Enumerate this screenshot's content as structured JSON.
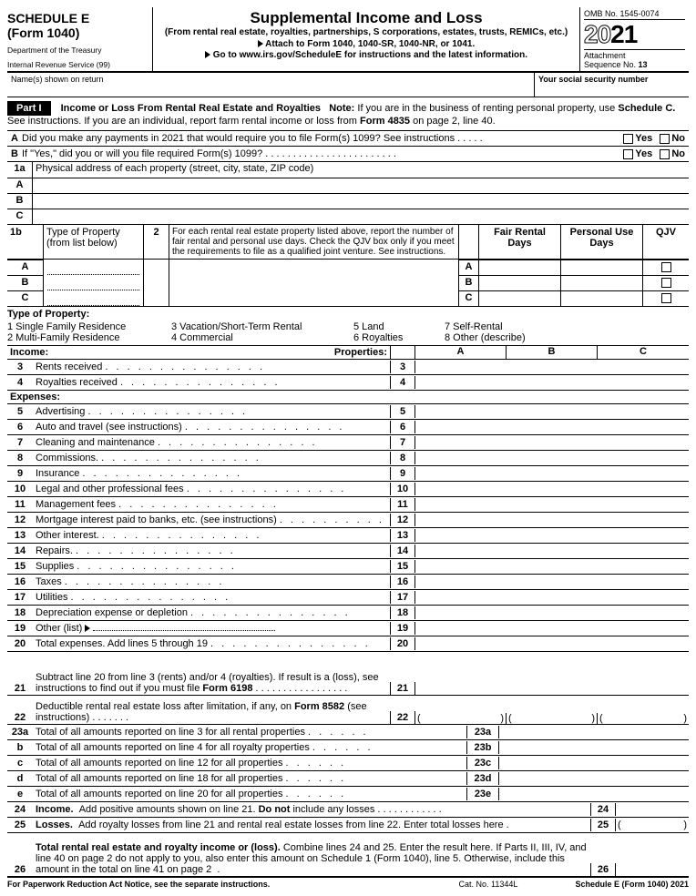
{
  "header": {
    "schedule": "SCHEDULE E",
    "form": "(Form 1040)",
    "dept": "Department of the Treasury",
    "irs": "Internal Revenue Service (99)",
    "title": "Supplemental Income and Loss",
    "subtitle": "(From rental real estate, royalties, partnerships, S corporations, estates, trusts, REMICs, etc.)",
    "attach": "Attach to Form 1040, 1040-SR, 1040-NR, or 1041.",
    "goto": "Go to www.irs.gov/ScheduleE for instructions and the latest information.",
    "omb": "OMB No. 1545-0074",
    "year": "2021",
    "attachment": "Attachment",
    "seq": "Sequence No. 13",
    "name_label": "Name(s) shown on return",
    "ssn_label": "Your social security number"
  },
  "part1": {
    "label": "Part I",
    "title": "Income or Loss From Rental Real Estate and Royalties",
    "note": "Note: If you are in the business of renting personal property, use Schedule C. See instructions. If you are an individual, report farm rental income or loss from Form 4835 on page 2, line 40."
  },
  "qA": {
    "lbl": "A",
    "txt": "Did you make any payments in 2021 that would require you to file Form(s) 1099? See instructions",
    "yes": "Yes",
    "no": "No"
  },
  "qB": {
    "lbl": "B",
    "txt": "If \"Yes,\" did you or will you file required Form(s) 1099?",
    "yes": "Yes",
    "no": "No"
  },
  "l1a": {
    "num": "1a",
    "txt": "Physical address of each property (street, city, state, ZIP code)"
  },
  "abc": [
    "A",
    "B",
    "C"
  ],
  "l1b": {
    "num": "1b",
    "type_lbl": "Type of Property",
    "from": "(from list below)",
    "col2_num": "2",
    "col2_txt": "For each rental real estate property listed above, report the number of fair rental and personal use days. Check the QJV box only if you meet the requirements to file as a qualified joint venture. See instructions.",
    "fair": "Fair Rental Days",
    "personal": "Personal Use Days",
    "qjv": "QJV"
  },
  "prop_types": {
    "hdr": "Type of Property:",
    "items": [
      "1  Single Family Residence",
      "3  Vacation/Short-Term Rental",
      "5  Land",
      "7  Self-Rental",
      "2  Multi-Family Residence",
      "4  Commercial",
      "6  Royalties",
      "8  Other (describe)"
    ]
  },
  "income_hdr": "Income:",
  "props_hdr": "Properties:",
  "colA": "A",
  "colB": "B",
  "colC": "C",
  "lines": {
    "l3": {
      "n": "3",
      "t": "Rents received"
    },
    "l4": {
      "n": "4",
      "t": "Royalties received"
    },
    "exp": "Expenses:",
    "l5": {
      "n": "5",
      "t": "Advertising"
    },
    "l6": {
      "n": "6",
      "t": "Auto and travel (see instructions)"
    },
    "l7": {
      "n": "7",
      "t": "Cleaning and maintenance"
    },
    "l8": {
      "n": "8",
      "t": "Commissions."
    },
    "l9": {
      "n": "9",
      "t": "Insurance"
    },
    "l10": {
      "n": "10",
      "t": "Legal and other professional fees"
    },
    "l11": {
      "n": "11",
      "t": "Management fees"
    },
    "l12": {
      "n": "12",
      "t": "Mortgage interest paid to banks, etc. (see instructions)"
    },
    "l13": {
      "n": "13",
      "t": "Other interest."
    },
    "l14": {
      "n": "14",
      "t": "Repairs."
    },
    "l15": {
      "n": "15",
      "t": "Supplies"
    },
    "l16": {
      "n": "16",
      "t": "Taxes"
    },
    "l17": {
      "n": "17",
      "t": "Utilities"
    },
    "l18": {
      "n": "18",
      "t": "Depreciation expense or depletion"
    },
    "l19": {
      "n": "19",
      "t": "Other (list)"
    },
    "l20": {
      "n": "20",
      "t": "Total expenses. Add lines 5 through 19"
    },
    "l21": {
      "n": "21",
      "t": "Subtract line 20 from line 3 (rents) and/or 4 (royalties). If result is a (loss), see instructions to find out if you must file Form 6198"
    },
    "l22": {
      "n": "22",
      "t": "Deductible rental real estate loss after limitation, if any, on Form 8582 (see instructions)"
    },
    "l23a": {
      "n": "23a",
      "t": "Total of all amounts reported on line 3 for all rental properties",
      "box": "23a"
    },
    "l23b": {
      "n": "b",
      "t": "Total of all amounts reported on line 4 for all royalty properties",
      "box": "23b"
    },
    "l23c": {
      "n": "c",
      "t": "Total of all amounts reported on line 12 for all properties",
      "box": "23c"
    },
    "l23d": {
      "n": "d",
      "t": "Total of all amounts reported on line 18 for all properties",
      "box": "23d"
    },
    "l23e": {
      "n": "e",
      "t": "Total of all amounts reported on line 20 for all properties",
      "box": "23e"
    },
    "l24": {
      "n": "24",
      "t": "Income.  Add positive amounts shown on line 21. Do not include any losses",
      "box": "24"
    },
    "l25": {
      "n": "25",
      "t": "Losses.  Add royalty losses from line 21 and rental real estate losses from line 22. Enter total losses here .",
      "box": "25"
    },
    "l26": {
      "n": "26",
      "t": "Total rental real estate and royalty income or (loss). Combine lines 24 and 25. Enter the result here. If Parts II, III, IV, and line 40 on page 2 do not apply to you, also enter this amount on Schedule 1 (Form 1040), line 5. Otherwise, include this amount in the total on line 41 on page 2",
      "box": "26"
    }
  },
  "footer": {
    "l": "For Paperwork Reduction Act Notice, see the separate instructions.",
    "c": "Cat. No. 11344L",
    "r": "Schedule E (Form 1040) 2021"
  }
}
